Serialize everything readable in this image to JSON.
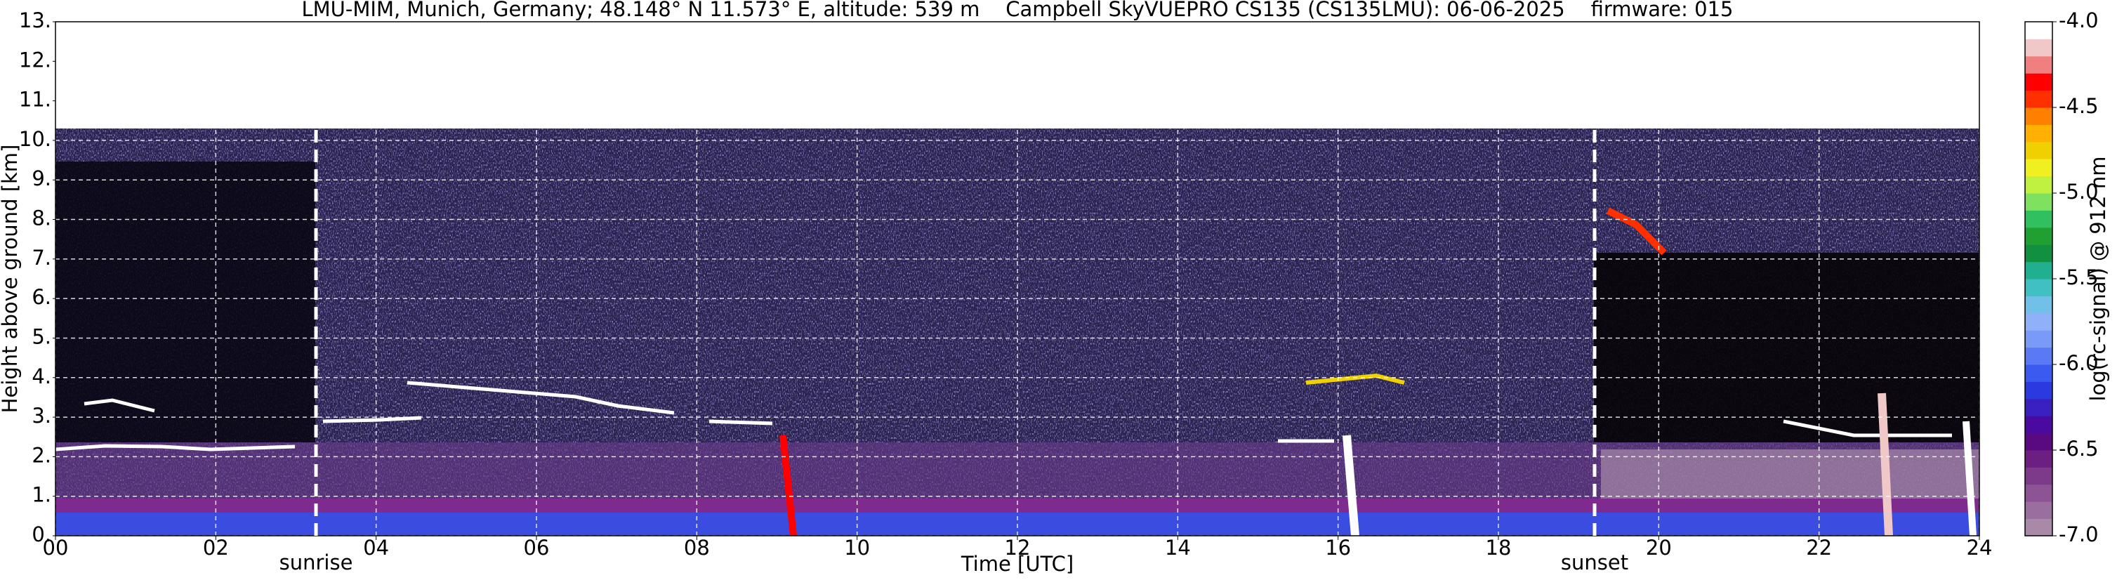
{
  "chart_data": {
    "type": "ceilometer",
    "title": "LMU-MIM, Munich, Germany; 48.148° N 11.573° E, altitude: 539 m    Campbell SkyVUEPRO CS135 (CS135LMU): 06-06-2025    firmware: 015",
    "x_label": "Time [UTC]",
    "y_label": "Height above ground [km]",
    "xlim": [
      0,
      24
    ],
    "xticks": [
      {
        "value": 0,
        "label": "00"
      },
      {
        "value": 2,
        "label": "02"
      },
      {
        "value": 4,
        "label": "04"
      },
      {
        "value": 6,
        "label": "06"
      },
      {
        "value": 8,
        "label": "08"
      },
      {
        "value": 10,
        "label": "10"
      },
      {
        "value": 12,
        "label": "12"
      },
      {
        "value": 14,
        "label": "14"
      },
      {
        "value": 16,
        "label": "16"
      },
      {
        "value": 18,
        "label": "18"
      },
      {
        "value": 20,
        "label": "20"
      },
      {
        "value": 22,
        "label": "22"
      },
      {
        "value": 24,
        "label": "24"
      }
    ],
    "ylim": [
      0,
      13
    ],
    "yticks": [
      {
        "value": 0,
        "label": "0."
      },
      {
        "value": 1,
        "label": "1."
      },
      {
        "value": 2,
        "label": "2."
      },
      {
        "value": 3,
        "label": "3."
      },
      {
        "value": 4,
        "label": "4."
      },
      {
        "value": 5,
        "label": "5."
      },
      {
        "value": 6,
        "label": "6."
      },
      {
        "value": 7,
        "label": "7."
      },
      {
        "value": 8,
        "label": "8."
      },
      {
        "value": 9,
        "label": "9."
      },
      {
        "value": 10,
        "label": "10."
      },
      {
        "value": 11,
        "label": "11."
      },
      {
        "value": 12,
        "label": "12."
      },
      {
        "value": 13,
        "label": "13."
      }
    ],
    "grid": true,
    "annotations": [
      {
        "text": "sunrise",
        "x": 3.25
      },
      {
        "text": "sunset",
        "x": 19.2
      }
    ],
    "colorbar": {
      "label": "log(rc-signal) @ 912 nm",
      "clim": [
        -7,
        -4
      ],
      "ticks": [
        {
          "value": -4,
          "label": "-4.0"
        },
        -4.5,
        {
          "value": -5,
          "label": "-5.0"
        },
        -5.5,
        {
          "value": -6,
          "label": "-6.0"
        },
        -6.5,
        {
          "value": -7,
          "label": "-7.0"
        }
      ],
      "colors": [
        "#a88aa8",
        "#9a6e9e",
        "#8c5494",
        "#7e3a8a",
        "#6c1f80",
        "#5a0a80",
        "#4a0aa0",
        "#3a20c0",
        "#2a3ae0",
        "#3a5af0",
        "#5a7af5",
        "#7a9af8",
        "#90b0fa",
        "#70c0e8",
        "#40c0c0",
        "#20b090",
        "#109040",
        "#20a030",
        "#30c060",
        "#80e060",
        "#c0f040",
        "#f0f020",
        "#f0d000",
        "#ffb000",
        "#ff8000",
        "#ff3000",
        "#ff0000",
        "#f08080",
        "#f0c8c8",
        "#ffffff"
      ]
    }
  }
}
